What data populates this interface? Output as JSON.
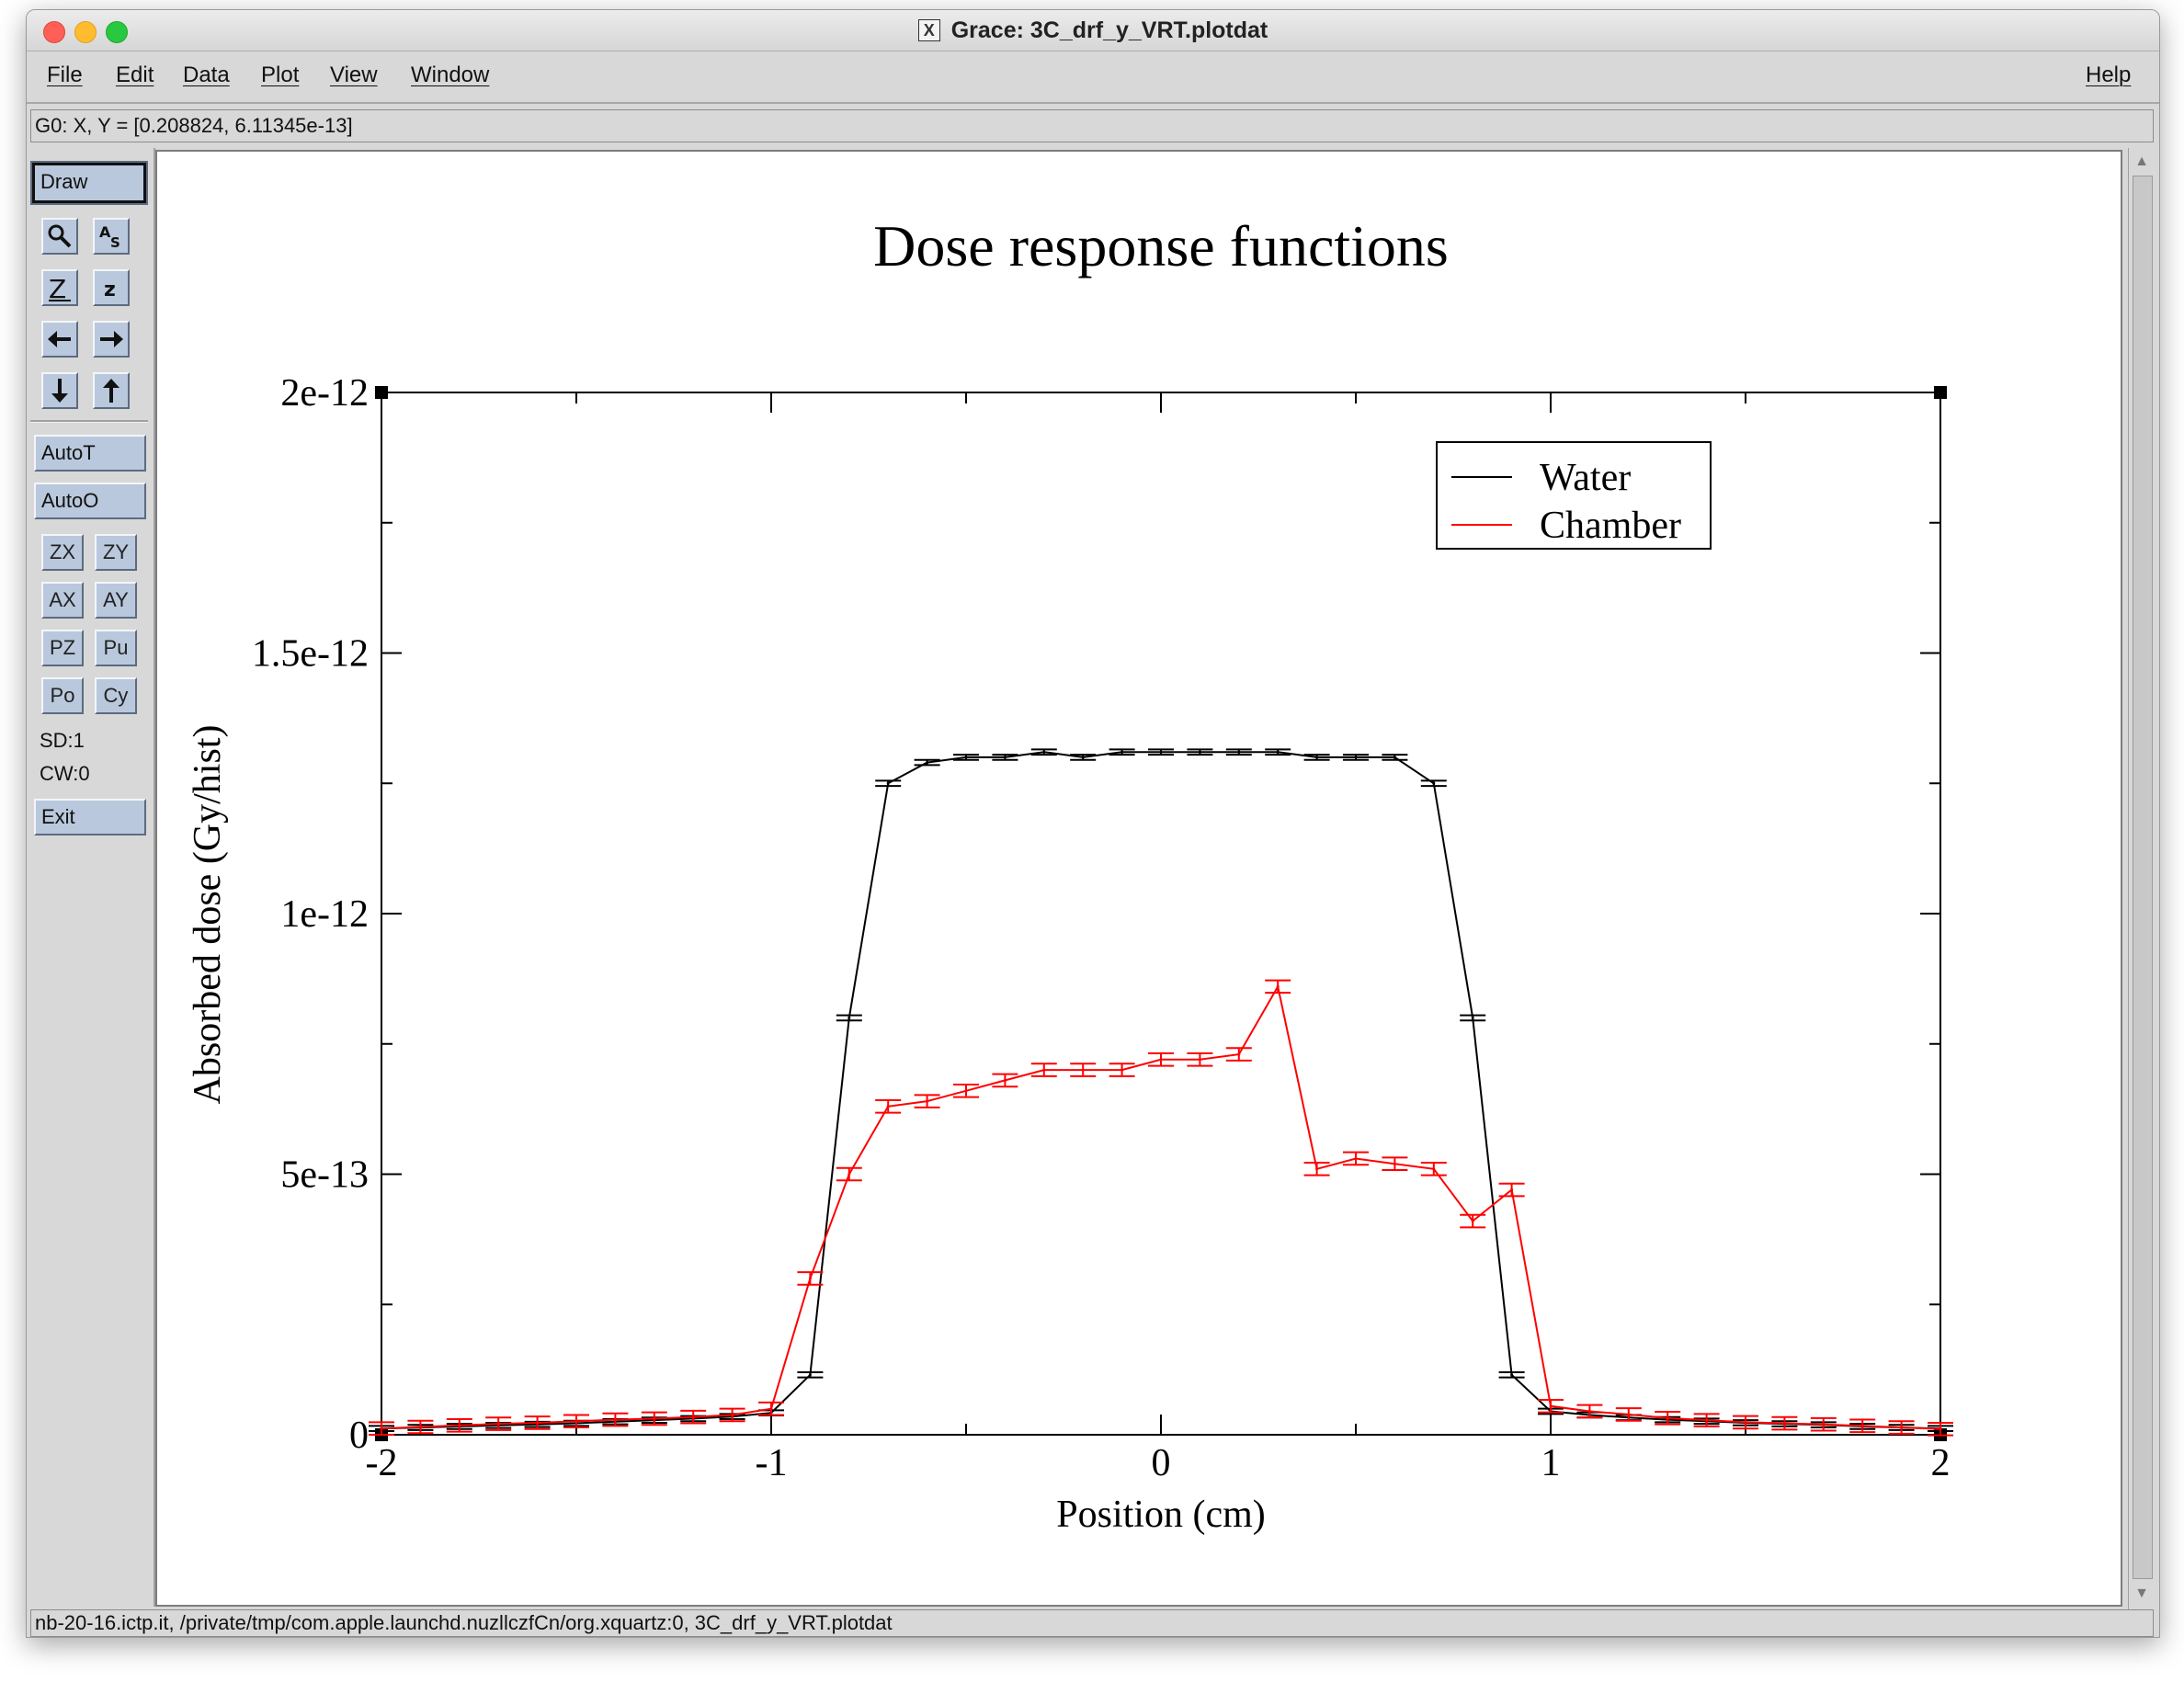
{
  "window": {
    "title": "Grace: 3C_drf_y_VRT.plotdat"
  },
  "menu": {
    "file": "File",
    "edit": "Edit",
    "data": "Data",
    "plot": "Plot",
    "view": "View",
    "window": "Window",
    "help": "Help"
  },
  "coord_readout": "G0: X, Y = [0.208824, 6.11345e-13]",
  "toolbar": {
    "draw": "Draw",
    "icons": [
      "zoom-icon",
      "text-icon",
      "zoom-in-icon",
      "zoom-out-icon",
      "scroll-left-icon",
      "scroll-right-icon",
      "scroll-down-icon",
      "scroll-up-icon"
    ],
    "autot": "AutoT",
    "autoo": "AutoO",
    "zx": "ZX",
    "zy": "ZY",
    "ax": "AX",
    "ay": "AY",
    "pz": "PZ",
    "pu": "Pu",
    "po": "Po",
    "cy": "Cy",
    "sd": "SD:1",
    "cw": "CW:0",
    "exit": "Exit"
  },
  "status": "nb-20-16.ictp.it, /private/tmp/com.apple.launchd.nuzllczfCn/org.xquartz:0, 3C_drf_y_VRT.plotdat",
  "chart_data": {
    "type": "line",
    "title": "Dose response functions",
    "xlabel": "Position (cm)",
    "ylabel": "Absorbed dose (Gy/hist)",
    "xlim": [
      -2,
      2
    ],
    "ylim": [
      0,
      2e-12
    ],
    "xticks": [
      -2,
      -1,
      0,
      1,
      2
    ],
    "xtick_labels": [
      "-2",
      "-1",
      "0",
      "1",
      "2"
    ],
    "yticks": [
      0,
      5e-13,
      1e-12,
      1.5e-12,
      2e-12
    ],
    "ytick_labels": [
      "0",
      "5e-13",
      "1e-12",
      "1.5e-12",
      "2e-12"
    ],
    "legend_position": "top-right",
    "grid": false,
    "series": [
      {
        "name": "Water",
        "color": "#000000",
        "x": [
          -2,
          -1.9,
          -1.8,
          -1.7,
          -1.6,
          -1.5,
          -1.4,
          -1.3,
          -1.2,
          -1.1,
          -1.0,
          -0.9,
          -0.8,
          -0.7,
          -0.6,
          -0.5,
          -0.4,
          -0.3,
          -0.2,
          -0.1,
          0.0,
          0.1,
          0.2,
          0.3,
          0.4,
          0.5,
          0.6,
          0.7,
          0.8,
          0.9,
          1.0,
          1.1,
          1.2,
          1.3,
          1.4,
          1.5,
          1.6,
          1.7,
          1.8,
          1.9,
          2.0
        ],
        "y": [
          1.2e-14,
          1.4e-14,
          1.6e-14,
          1.8e-14,
          2e-14,
          2.2e-14,
          2.5e-14,
          2.8e-14,
          3.1e-14,
          3.5e-14,
          4.2e-14,
          1.15e-13,
          8e-13,
          1.25e-12,
          1.29e-12,
          1.3e-12,
          1.3e-12,
          1.31e-12,
          1.3e-12,
          1.31e-12,
          1.31e-12,
          1.31e-12,
          1.31e-12,
          1.31e-12,
          1.3e-12,
          1.3e-12,
          1.3e-12,
          1.25e-12,
          8e-13,
          1.15e-13,
          4.5e-14,
          3.8e-14,
          3.3e-14,
          2.9e-14,
          2.6e-14,
          2.3e-14,
          2.1e-14,
          1.9e-14,
          1.6e-14,
          1.4e-14,
          1.2e-14
        ],
        "err": 5e-15
      },
      {
        "name": "Chamber",
        "color": "#ff0000",
        "x": [
          -2,
          -1.9,
          -1.8,
          -1.7,
          -1.6,
          -1.5,
          -1.4,
          -1.3,
          -1.2,
          -1.1,
          -1.0,
          -0.9,
          -0.8,
          -0.7,
          -0.6,
          -0.5,
          -0.4,
          -0.3,
          -0.2,
          -0.1,
          0.0,
          0.1,
          0.2,
          0.3,
          0.4,
          0.5,
          0.6,
          0.7,
          0.8,
          0.9,
          1.0,
          1.1,
          1.2,
          1.3,
          1.4,
          1.5,
          1.6,
          1.7,
          1.8,
          1.9,
          2.0
        ],
        "y": [
          1.2e-14,
          1.5e-14,
          1.8e-14,
          2.1e-14,
          2.3e-14,
          2.6e-14,
          2.9e-14,
          3.1e-14,
          3.4e-14,
          3.8e-14,
          5e-14,
          3e-13,
          5e-13,
          6.3e-13,
          6.4e-13,
          6.6e-13,
          6.8e-13,
          7e-13,
          7e-13,
          7e-13,
          7.2e-13,
          7.2e-13,
          7.3e-13,
          8.6e-13,
          5.1e-13,
          5.3e-13,
          5.2e-13,
          5.1e-13,
          4.1e-13,
          4.7e-13,
          5.5e-14,
          4.5e-14,
          3.9e-14,
          3.2e-14,
          2.8e-14,
          2.4e-14,
          2.2e-14,
          2e-14,
          1.7e-14,
          1.4e-14,
          1.1e-14
        ],
        "err": 1.2e-14
      }
    ]
  }
}
